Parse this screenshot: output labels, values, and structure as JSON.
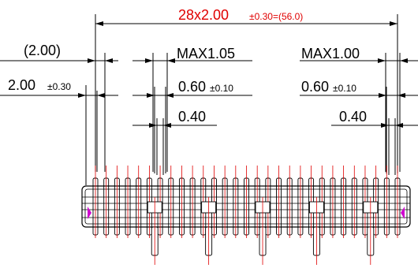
{
  "overall_dimension": {
    "main": "28x2.00",
    "tolerance": "±0.30=(56.0)",
    "color": "#e00000"
  },
  "left_labels": {
    "pitch_ref": "(2.00)",
    "pitch_main": "2.00",
    "pitch_tol": "±0.30"
  },
  "center_labels": {
    "max": "MAX1.05",
    "width_main": "0.60",
    "width_tol": "±0.10",
    "tail": "0.40"
  },
  "right_labels": {
    "max": "MAX1.00",
    "width_main": "0.60",
    "width_tol": "±0.10",
    "tail": "0.40"
  },
  "connector": {
    "pin_count": 29,
    "pitch_mm": 2.0,
    "pin_color": "#e00000",
    "body_color": "#000000"
  }
}
